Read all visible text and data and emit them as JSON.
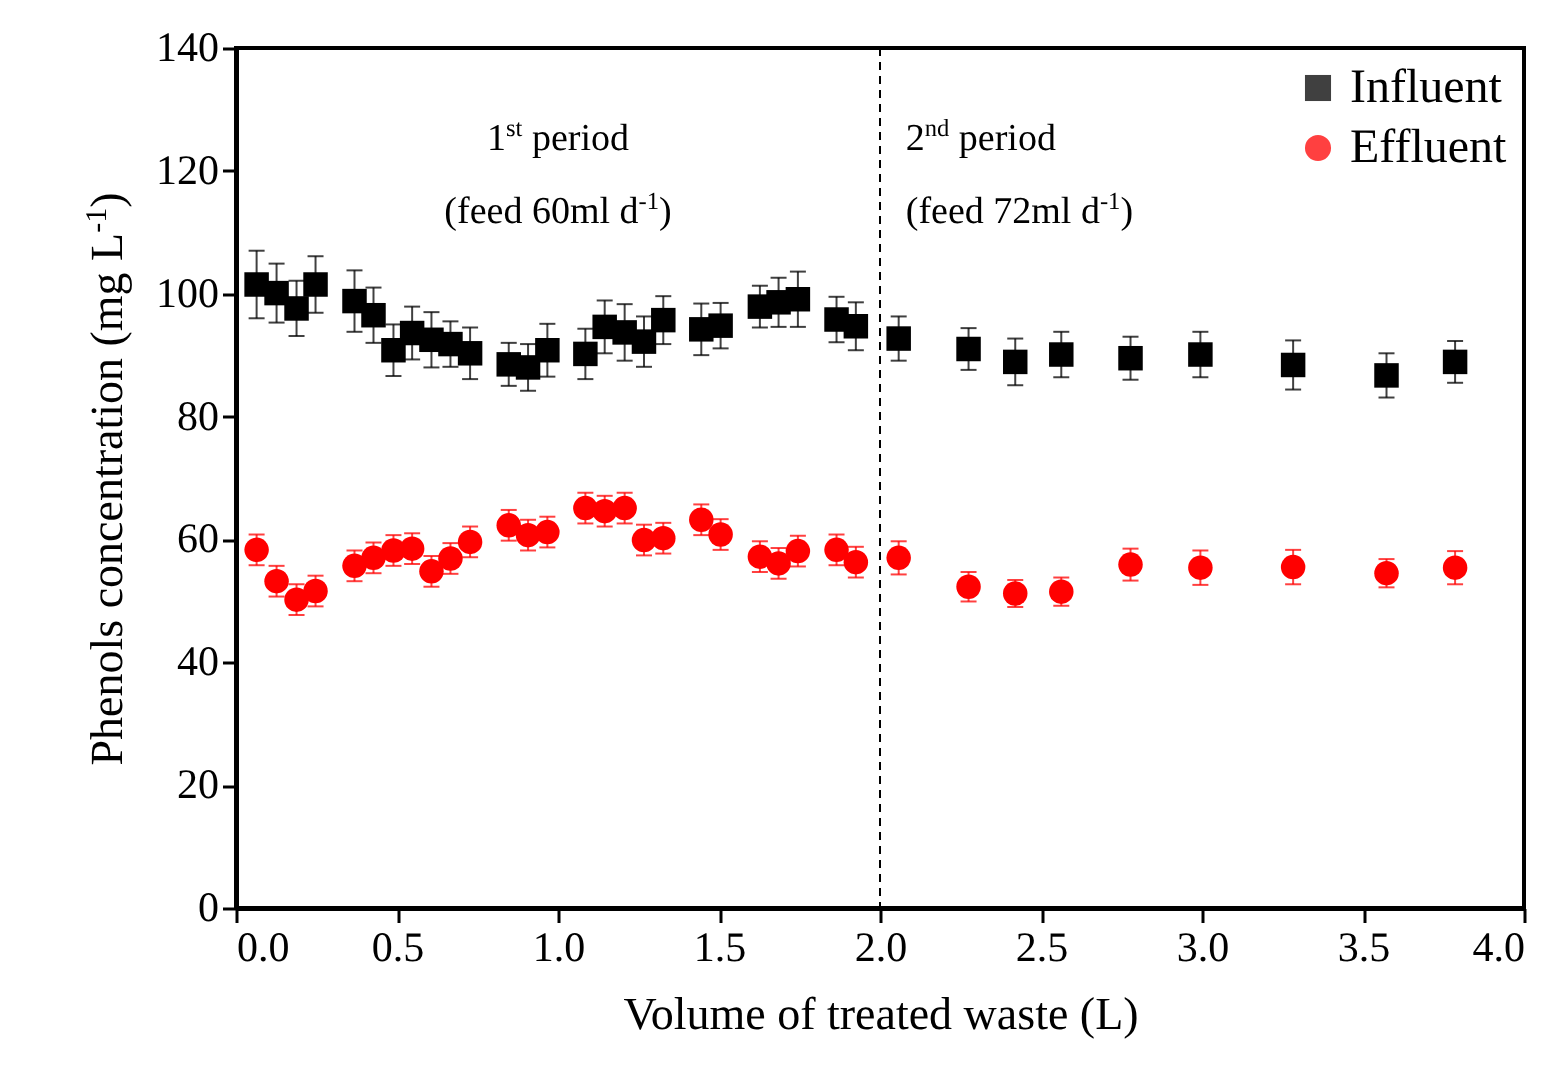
{
  "chart_data": {
    "type": "scatter",
    "xlabel": "Volume of treated waste (L)",
    "ylabel": "Phenols concentration (mg L$^{-1}$)",
    "x": [
      0.064,
      0.126,
      0.188,
      0.247,
      0.368,
      0.427,
      0.489,
      0.547,
      0.607,
      0.666,
      0.727,
      0.847,
      0.907,
      0.967,
      1.085,
      1.145,
      1.207,
      1.267,
      1.327,
      1.445,
      1.505,
      1.627,
      1.685,
      1.745,
      1.865,
      1.925,
      2.058,
      2.275,
      2.42,
      2.563,
      2.778,
      2.995,
      3.283,
      3.573,
      3.786
    ],
    "series": [
      {
        "name": "Influent",
        "color": "#000000",
        "marker": "square",
        "values": [
          101.5,
          100.1,
          97.6,
          101.5,
          98.8,
          96.5,
          90.8,
          93.6,
          92.5,
          91.8,
          90.3,
          88.5,
          88.0,
          90.8,
          90.2,
          94.6,
          93.7,
          92.2,
          95.7,
          94.2,
          94.8,
          97.9,
          98.6,
          99.1,
          95.8,
          94.7,
          92.7,
          91.0,
          88.9,
          90.1,
          89.5,
          90.1,
          88.4,
          86.7,
          88.9
        ],
        "errors": [
          5.5,
          4.8,
          4.5,
          4.6,
          5.0,
          4.5,
          4.2,
          4.3,
          4.5,
          3.7,
          4.2,
          3.5,
          3.8,
          4.3,
          4.1,
          4.3,
          4.6,
          4.1,
          3.9,
          4.2,
          3.7,
          3.4,
          4.0,
          4.5,
          3.7,
          3.9,
          3.6,
          3.4,
          3.8,
          3.7,
          3.5,
          3.7,
          4.0,
          3.6,
          3.4
        ]
      },
      {
        "name": "Effluent",
        "color": "#ff0000",
        "marker": "circle",
        "values": [
          58.3,
          53.2,
          50.2,
          51.6,
          55.7,
          57.0,
          58.2,
          58.5,
          54.8,
          56.9,
          59.6,
          62.3,
          60.7,
          61.2,
          65.1,
          64.6,
          65.1,
          59.9,
          60.2,
          63.2,
          60.8,
          57.2,
          56.1,
          58.1,
          58.3,
          56.3,
          57.0,
          52.3,
          51.2,
          51.5,
          55.9,
          55.4,
          55.5,
          54.5,
          55.4
        ],
        "errors": [
          2.5,
          2.5,
          2.5,
          2.5,
          2.5,
          2.5,
          2.5,
          2.5,
          2.5,
          2.5,
          2.5,
          2.5,
          2.5,
          2.5,
          2.5,
          2.5,
          2.5,
          2.5,
          2.5,
          2.5,
          2.5,
          2.5,
          2.5,
          2.5,
          2.5,
          2.5,
          2.7,
          2.4,
          2.2,
          2.3,
          2.6,
          2.8,
          2.8,
          2.3,
          2.7
        ]
      }
    ],
    "xlim": [
      0,
      4
    ],
    "xticks": [
      {
        "value": 0,
        "label": "0.0"
      },
      {
        "value": 0.5,
        "label": "0.5"
      },
      {
        "value": 1,
        "label": "1.0"
      },
      {
        "value": 1.5,
        "label": "1.5"
      },
      {
        "value": 2,
        "label": "2.0"
      },
      {
        "value": 2.5,
        "label": "2.5"
      },
      {
        "value": 3,
        "label": "3.0"
      },
      {
        "value": 3.5,
        "label": "3.5"
      },
      {
        "value": 4,
        "label": "4.0"
      }
    ],
    "ylim": [
      0,
      140
    ],
    "yticks": [
      0,
      20,
      40,
      60,
      80,
      100,
      120,
      140
    ],
    "ref_lines": [
      {
        "axis": "x",
        "value": 2,
        "line_style": "dashed",
        "color": "#000000"
      }
    ],
    "annotations": [
      "1$^{st}$ period",
      "(feed 60ml d$^{-1}$)",
      "2$^{nd}$ period",
      "(feed 72ml d$^{-1}$)"
    ],
    "legend": "top right",
    "grid": false
  }
}
